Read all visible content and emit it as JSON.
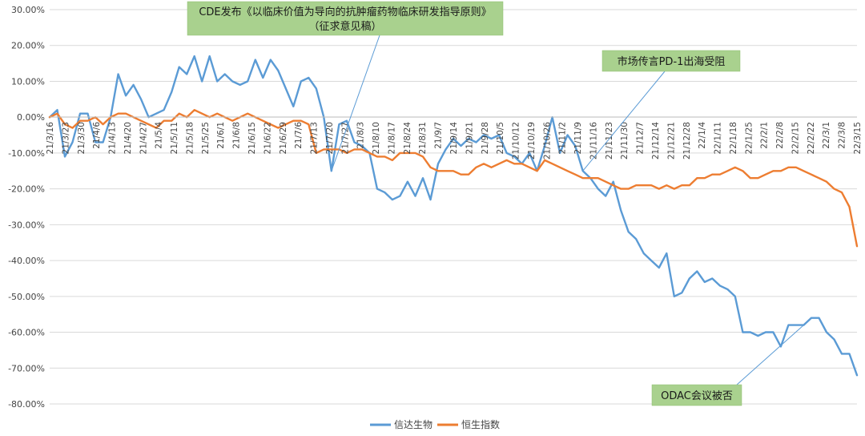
{
  "chart_data": {
    "type": "line",
    "title": "",
    "xlabel": "",
    "ylabel": "",
    "ylim": [
      -0.8,
      0.3
    ],
    "y_tick_labels": [
      "30.00%",
      "20.00%",
      "10.00%",
      "0.00%",
      "-10.00%",
      "-20.00%",
      "-30.00%",
      "-40.00%",
      "-50.00%",
      "-60.00%",
      "-70.00%",
      "-80.00%"
    ],
    "y_tick_values": [
      0.3,
      0.2,
      0.1,
      0.0,
      -0.1,
      -0.2,
      -0.3,
      -0.4,
      -0.5,
      -0.6,
      -0.7,
      -0.8
    ],
    "x_tick_labels": [
      "21/3/16",
      "21/3/23",
      "21/3/30",
      "21/4/6",
      "21/4/13",
      "21/4/20",
      "21/4/27",
      "21/5/4",
      "21/5/11",
      "21/5/18",
      "21/5/25",
      "21/6/1",
      "21/6/8",
      "21/6/15",
      "21/6/22",
      "21/6/29",
      "21/7/6",
      "21/7/13",
      "21/7/20",
      "21/7/27",
      "21/8/3",
      "21/8/10",
      "21/8/17",
      "21/8/24",
      "21/8/31",
      "21/9/7",
      "21/9/14",
      "21/9/21",
      "21/9/28",
      "21/10/5",
      "21/10/12",
      "21/10/19",
      "21/10/26",
      "21/11/2",
      "21/11/9",
      "21/11/16",
      "21/11/23",
      "21/11/30",
      "21/12/7",
      "21/12/14",
      "21/12/21",
      "21/12/28",
      "22/1/4",
      "22/1/11",
      "22/1/18",
      "22/1/25",
      "22/2/1",
      "22/2/8",
      "22/2/15",
      "22/2/22",
      "22/3/1",
      "22/3/8",
      "22/3/15"
    ],
    "grid": true,
    "legend_position": "bottom",
    "series": [
      {
        "name": "信达生物",
        "color": "#5b9bd5",
        "values": [
          0.0,
          0.02,
          -0.11,
          -0.07,
          0.01,
          0.01,
          -0.07,
          -0.07,
          0.0,
          0.12,
          0.06,
          0.09,
          0.05,
          0.0,
          0.01,
          0.02,
          0.07,
          0.14,
          0.12,
          0.17,
          0.1,
          0.17,
          0.1,
          0.12,
          0.1,
          0.09,
          0.1,
          0.16,
          0.11,
          0.16,
          0.13,
          0.08,
          0.03,
          0.1,
          0.11,
          0.08,
          0.0,
          -0.15,
          -0.02,
          -0.01,
          -0.07,
          -0.08,
          -0.1,
          -0.2,
          -0.21,
          -0.23,
          -0.22,
          -0.18,
          -0.22,
          -0.17,
          -0.23,
          -0.13,
          -0.09,
          -0.06,
          -0.08,
          -0.06,
          -0.07,
          -0.05,
          -0.06,
          -0.05,
          -0.1,
          -0.11,
          -0.13,
          -0.1,
          -0.15,
          -0.08,
          0.0,
          -0.1,
          -0.05,
          -0.08,
          -0.15,
          -0.17,
          -0.2,
          -0.22,
          -0.18,
          -0.26,
          -0.32,
          -0.34,
          -0.38,
          -0.4,
          -0.42,
          -0.38,
          -0.5,
          -0.49,
          -0.45,
          -0.43,
          -0.46,
          -0.45,
          -0.47,
          -0.48,
          -0.5,
          -0.6,
          -0.6,
          -0.61,
          -0.6,
          -0.6,
          -0.64,
          -0.58,
          -0.58,
          -0.58,
          -0.56,
          -0.56,
          -0.6,
          -0.62,
          -0.66,
          -0.66,
          -0.72
        ]
      },
      {
        "name": "恒生指数",
        "color": "#ed7d31",
        "values": [
          0.0,
          0.01,
          -0.02,
          -0.03,
          -0.01,
          -0.01,
          0.0,
          -0.02,
          0.0,
          0.01,
          0.01,
          0.0,
          -0.01,
          -0.02,
          -0.03,
          -0.01,
          -0.01,
          0.01,
          0.0,
          0.02,
          0.01,
          0.0,
          0.01,
          0.0,
          -0.01,
          0.0,
          0.01,
          0.0,
          -0.01,
          -0.02,
          -0.03,
          -0.02,
          -0.01,
          -0.01,
          -0.02,
          -0.1,
          -0.09,
          -0.09,
          -0.09,
          -0.1,
          -0.09,
          -0.09,
          -0.1,
          -0.11,
          -0.11,
          -0.12,
          -0.1,
          -0.1,
          -0.1,
          -0.11,
          -0.14,
          -0.15,
          -0.15,
          -0.15,
          -0.16,
          -0.16,
          -0.14,
          -0.13,
          -0.14,
          -0.13,
          -0.12,
          -0.13,
          -0.13,
          -0.14,
          -0.15,
          -0.12,
          -0.13,
          -0.14,
          -0.15,
          -0.16,
          -0.17,
          -0.17,
          -0.17,
          -0.18,
          -0.19,
          -0.2,
          -0.2,
          -0.19,
          -0.19,
          -0.19,
          -0.2,
          -0.19,
          -0.2,
          -0.19,
          -0.19,
          -0.17,
          -0.17,
          -0.16,
          -0.16,
          -0.15,
          -0.14,
          -0.15,
          -0.17,
          -0.17,
          -0.16,
          -0.15,
          -0.15,
          -0.14,
          -0.14,
          -0.15,
          -0.16,
          -0.17,
          -0.18,
          -0.2,
          -0.21,
          -0.25,
          -0.36
        ]
      }
    ],
    "annotations": [
      {
        "id": "cde",
        "lines": [
          "CDE发布《以临床价值为导向的抗肿瘤药物临床研发指导原则》",
          "（征求意见稿）"
        ],
        "target_index": 37,
        "target_series": 0,
        "box_color": "#a9d18e"
      },
      {
        "id": "pd1",
        "lines": [
          "市场传言PD-1出海受阻"
        ],
        "target_index": 70,
        "target_series": 0,
        "box_color": "#a9d18e"
      },
      {
        "id": "odac",
        "lines": [
          "ODAC会议被否"
        ],
        "target_index": 99,
        "target_series": 0,
        "box_color": "#a9d18e"
      }
    ]
  }
}
